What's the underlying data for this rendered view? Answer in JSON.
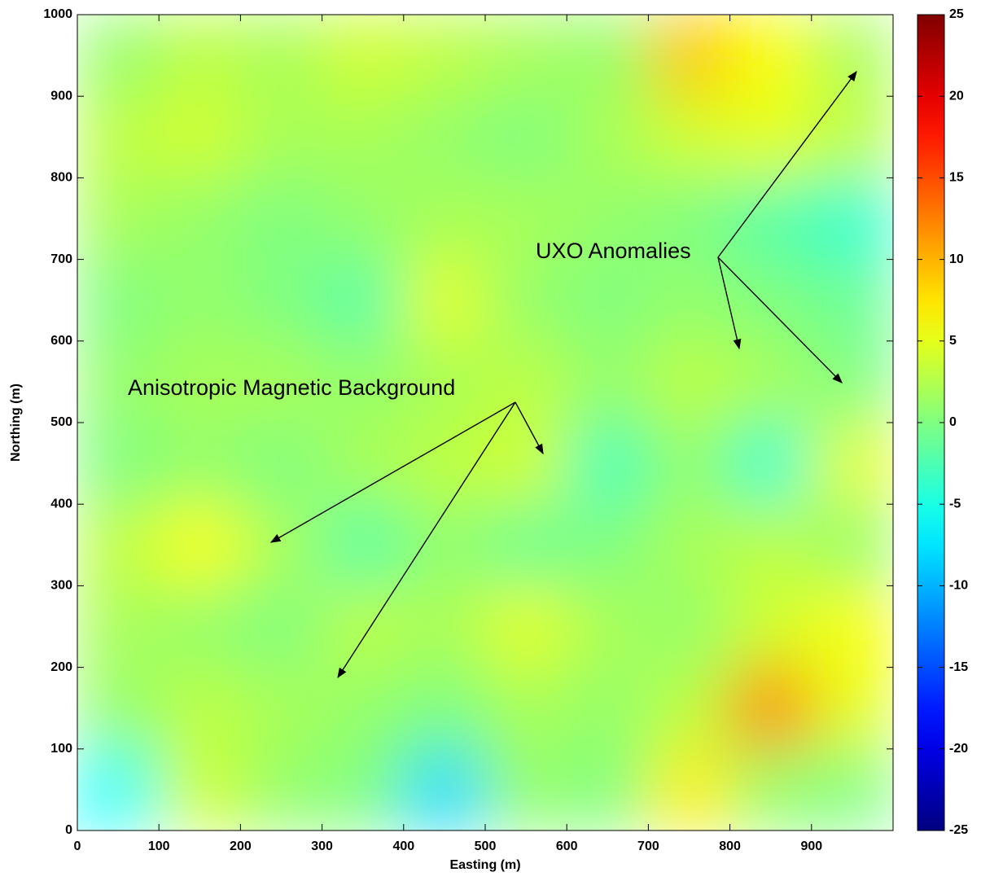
{
  "chart_data": {
    "type": "heatmap",
    "colormap": "jet",
    "xlabel": "Easting (m)",
    "ylabel": "Northing (m)",
    "xlim": [
      0,
      1000
    ],
    "ylim": [
      0,
      1000
    ],
    "xticks": [
      0,
      100,
      200,
      300,
      400,
      500,
      600,
      700,
      800,
      900
    ],
    "yticks": [
      0,
      100,
      200,
      300,
      400,
      500,
      600,
      700,
      800,
      900,
      1000
    ],
    "x": [
      50,
      150,
      250,
      350,
      450,
      550,
      650,
      750,
      850,
      950
    ],
    "y": [
      950,
      850,
      750,
      650,
      550,
      450,
      350,
      250,
      150,
      50
    ],
    "z": [
      [
        1,
        3,
        2,
        4,
        3,
        2,
        1,
        9,
        6,
        2
      ],
      [
        3,
        4,
        2,
        2,
        1,
        0,
        2,
        4,
        5,
        3
      ],
      [
        2,
        1,
        0,
        1,
        2,
        2,
        1,
        0,
        -2,
        -4
      ],
      [
        0,
        1,
        0,
        -2,
        5,
        1,
        0,
        1,
        0,
        -1
      ],
      [
        1,
        2,
        2,
        1,
        2,
        3,
        1,
        3,
        2,
        0
      ],
      [
        0,
        1,
        0,
        2,
        3,
        4,
        -3,
        1,
        -4,
        5
      ],
      [
        3,
        6,
        2,
        -2,
        1,
        -1,
        0,
        2,
        3,
        1
      ],
      [
        2,
        1,
        0,
        3,
        2,
        5,
        2,
        1,
        4,
        6
      ],
      [
        1,
        3,
        2,
        1,
        0,
        2,
        1,
        3,
        12,
        5
      ],
      [
        -6,
        4,
        1,
        0,
        -8,
        1,
        0,
        7,
        1,
        0
      ]
    ],
    "clim": [
      -25,
      25
    ],
    "cticks": [
      -25,
      -20,
      -15,
      -10,
      -5,
      0,
      5,
      10,
      15,
      20,
      25
    ],
    "annotations": [
      {
        "text": "UXO Anomalies"
      },
      {
        "text": "Anisotropic Magnetic Background"
      }
    ]
  }
}
